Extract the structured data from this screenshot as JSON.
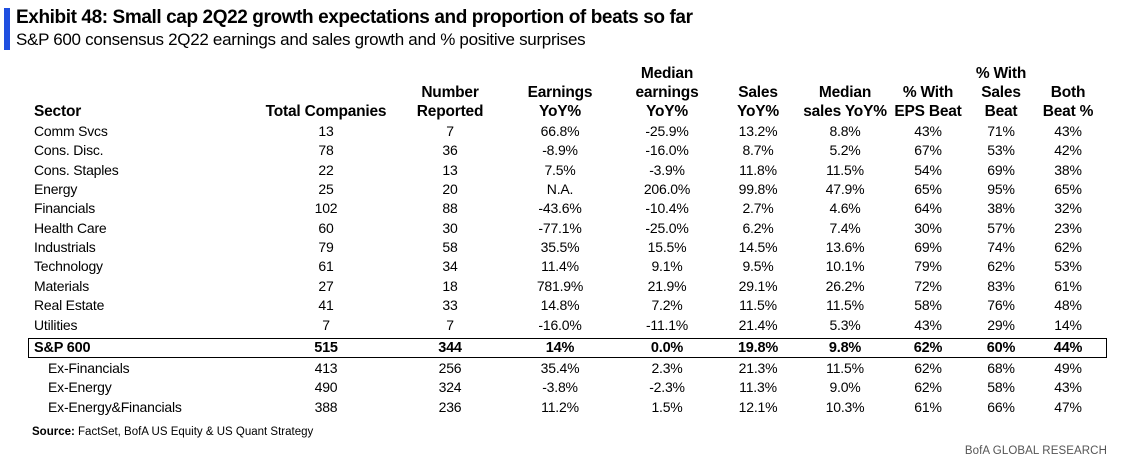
{
  "title": "Exhibit 48: Small cap 2Q22 growth expectations and proportion of beats so far",
  "subtitle": "S&P 600 consensus 2Q22 earnings and sales growth and % positive surprises",
  "accent_color": "#1F4FE0",
  "headers": {
    "sector": [
      "Sector"
    ],
    "total_companies": [
      "Total Companies"
    ],
    "number_reported": [
      "Number",
      "Reported"
    ],
    "earnings_yoy": [
      "Earnings",
      "YoY%"
    ],
    "median_earnings_yoy": [
      "Median",
      "earnings",
      "YoY%"
    ],
    "sales_yoy": [
      "Sales",
      "YoY%"
    ],
    "median_sales_yoy": [
      "Median",
      "sales YoY%"
    ],
    "pct_eps_beat": [
      "% With",
      "EPS Beat"
    ],
    "pct_sales_beat": [
      "% With",
      "Sales",
      "Beat"
    ],
    "both_beat": [
      "Both",
      "Beat %"
    ]
  },
  "rows": [
    {
      "sector": "Comm Svcs",
      "total": "13",
      "reported": "7",
      "earnings": "66.8%",
      "med_earnings": "-25.9%",
      "sales": "13.2%",
      "med_sales": "8.8%",
      "eps_beat": "43%",
      "sales_beat": "71%",
      "both": "43%"
    },
    {
      "sector": "Cons. Disc.",
      "total": "78",
      "reported": "36",
      "earnings": "-8.9%",
      "med_earnings": "-16.0%",
      "sales": "8.7%",
      "med_sales": "5.2%",
      "eps_beat": "67%",
      "sales_beat": "53%",
      "both": "42%"
    },
    {
      "sector": "Cons. Staples",
      "total": "22",
      "reported": "13",
      "earnings": "7.5%",
      "med_earnings": "-3.9%",
      "sales": "11.8%",
      "med_sales": "11.5%",
      "eps_beat": "54%",
      "sales_beat": "69%",
      "both": "38%"
    },
    {
      "sector": "Energy",
      "total": "25",
      "reported": "20",
      "earnings": "N.A.",
      "med_earnings": "206.0%",
      "sales": "99.8%",
      "med_sales": "47.9%",
      "eps_beat": "65%",
      "sales_beat": "95%",
      "both": "65%"
    },
    {
      "sector": "Financials",
      "total": "102",
      "reported": "88",
      "earnings": "-43.6%",
      "med_earnings": "-10.4%",
      "sales": "2.7%",
      "med_sales": "4.6%",
      "eps_beat": "64%",
      "sales_beat": "38%",
      "both": "32%"
    },
    {
      "sector": "Health Care",
      "total": "60",
      "reported": "30",
      "earnings": "-77.1%",
      "med_earnings": "-25.0%",
      "sales": "6.2%",
      "med_sales": "7.4%",
      "eps_beat": "30%",
      "sales_beat": "57%",
      "both": "23%"
    },
    {
      "sector": "Industrials",
      "total": "79",
      "reported": "58",
      "earnings": "35.5%",
      "med_earnings": "15.5%",
      "sales": "14.5%",
      "med_sales": "13.6%",
      "eps_beat": "69%",
      "sales_beat": "74%",
      "both": "62%"
    },
    {
      "sector": "Technology",
      "total": "61",
      "reported": "34",
      "earnings": "11.4%",
      "med_earnings": "9.1%",
      "sales": "9.5%",
      "med_sales": "10.1%",
      "eps_beat": "79%",
      "sales_beat": "62%",
      "both": "53%"
    },
    {
      "sector": "Materials",
      "total": "27",
      "reported": "18",
      "earnings": "781.9%",
      "med_earnings": "21.9%",
      "sales": "29.1%",
      "med_sales": "26.2%",
      "eps_beat": "72%",
      "sales_beat": "83%",
      "both": "61%"
    },
    {
      "sector": "Real Estate",
      "total": "41",
      "reported": "33",
      "earnings": "14.8%",
      "med_earnings": "7.2%",
      "sales": "11.5%",
      "med_sales": "11.5%",
      "eps_beat": "58%",
      "sales_beat": "76%",
      "both": "48%"
    },
    {
      "sector": "Utilities",
      "total": "7",
      "reported": "7",
      "earnings": "-16.0%",
      "med_earnings": "-11.1%",
      "sales": "21.4%",
      "med_sales": "5.3%",
      "eps_beat": "43%",
      "sales_beat": "29%",
      "both": "14%"
    }
  ],
  "total_row": {
    "sector": "S&P 600",
    "total": "515",
    "reported": "344",
    "earnings": "14%",
    "med_earnings": "0.0%",
    "sales": "19.8%",
    "med_sales": "9.8%",
    "eps_beat": "62%",
    "sales_beat": "60%",
    "both": "44%"
  },
  "ex_rows": [
    {
      "sector": "Ex-Financials",
      "total": "413",
      "reported": "256",
      "earnings": "35.4%",
      "med_earnings": "2.3%",
      "sales": "21.3%",
      "med_sales": "11.5%",
      "eps_beat": "62%",
      "sales_beat": "68%",
      "both": "49%"
    },
    {
      "sector": "Ex-Energy",
      "total": "490",
      "reported": "324",
      "earnings": "-3.8%",
      "med_earnings": "-2.3%",
      "sales": "11.3%",
      "med_sales": "9.0%",
      "eps_beat": "62%",
      "sales_beat": "58%",
      "both": "43%"
    },
    {
      "sector": "Ex-Energy&Financials",
      "total": "388",
      "reported": "236",
      "earnings": "11.2%",
      "med_earnings": "1.5%",
      "sales": "12.1%",
      "med_sales": "10.3%",
      "eps_beat": "61%",
      "sales_beat": "66%",
      "both": "47%"
    }
  ],
  "source": {
    "label": "Source:",
    "text": "FactSet, BofA US Equity & US Quant Strategy"
  },
  "footer": "BofA GLOBAL RESEARCH"
}
